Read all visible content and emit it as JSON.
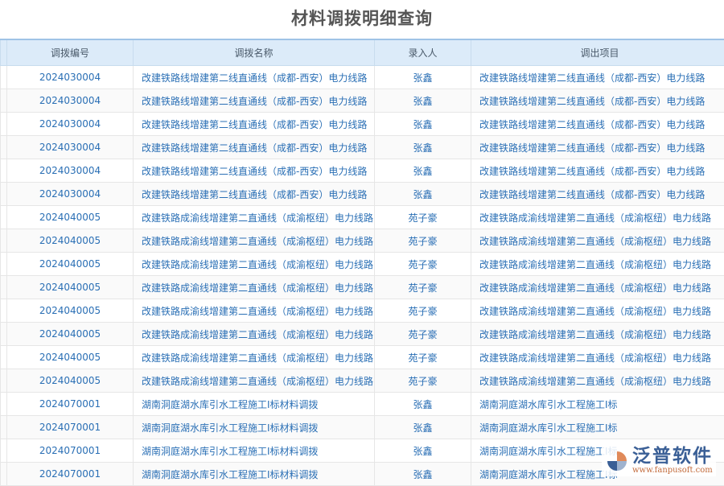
{
  "title": "材料调拨明细查询",
  "columns": [
    "调拨编号",
    "调拨名称",
    "录入人",
    "调出项目"
  ],
  "rows": [
    [
      "2024030004",
      "改建铁路线增建第二线直通线（成都-西安）电力线路",
      "张鑫",
      "改建铁路线增建第二线直通线（成都-西安）电力线路"
    ],
    [
      "2024030004",
      "改建铁路线增建第二线直通线（成都-西安）电力线路",
      "张鑫",
      "改建铁路线增建第二线直通线（成都-西安）电力线路"
    ],
    [
      "2024030004",
      "改建铁路线增建第二线直通线（成都-西安）电力线路",
      "张鑫",
      "改建铁路线增建第二线直通线（成都-西安）电力线路"
    ],
    [
      "2024030004",
      "改建铁路线增建第二线直通线（成都-西安）电力线路",
      "张鑫",
      "改建铁路线增建第二线直通线（成都-西安）电力线路"
    ],
    [
      "2024030004",
      "改建铁路线增建第二线直通线（成都-西安）电力线路",
      "张鑫",
      "改建铁路线增建第二线直通线（成都-西安）电力线路"
    ],
    [
      "2024030004",
      "改建铁路线增建第二线直通线（成都-西安）电力线路",
      "张鑫",
      "改建铁路线增建第二线直通线（成都-西安）电力线路"
    ],
    [
      "2024040005",
      "改建铁路成渝线增建第二直通线（成渝枢纽）电力线路",
      "苑子豪",
      "改建铁路成渝线增建第二直通线（成渝枢纽）电力线路"
    ],
    [
      "2024040005",
      "改建铁路成渝线增建第二直通线（成渝枢纽）电力线路",
      "苑子豪",
      "改建铁路成渝线增建第二直通线（成渝枢纽）电力线路"
    ],
    [
      "2024040005",
      "改建铁路成渝线增建第二直通线（成渝枢纽）电力线路",
      "苑子豪",
      "改建铁路成渝线增建第二直通线（成渝枢纽）电力线路"
    ],
    [
      "2024040005",
      "改建铁路成渝线增建第二直通线（成渝枢纽）电力线路",
      "苑子豪",
      "改建铁路成渝线增建第二直通线（成渝枢纽）电力线路"
    ],
    [
      "2024040005",
      "改建铁路成渝线增建第二直通线（成渝枢纽）电力线路",
      "苑子豪",
      "改建铁路成渝线增建第二直通线（成渝枢纽）电力线路"
    ],
    [
      "2024040005",
      "改建铁路成渝线增建第二直通线（成渝枢纽）电力线路",
      "苑子豪",
      "改建铁路成渝线增建第二直通线（成渝枢纽）电力线路"
    ],
    [
      "2024040005",
      "改建铁路成渝线增建第二直通线（成渝枢纽）电力线路",
      "苑子豪",
      "改建铁路成渝线增建第二直通线（成渝枢纽）电力线路"
    ],
    [
      "2024040005",
      "改建铁路成渝线增建第二直通线（成渝枢纽）电力线路",
      "苑子豪",
      "改建铁路成渝线增建第二直通线（成渝枢纽）电力线路"
    ],
    [
      "2024070001",
      "湖南洞庭湖水库引水工程施工I标材料调拨",
      "张鑫",
      "湖南洞庭湖水库引水工程施工I标"
    ],
    [
      "2024070001",
      "湖南洞庭湖水库引水工程施工I标材料调拨",
      "张鑫",
      "湖南洞庭湖水库引水工程施工I标"
    ],
    [
      "2024070001",
      "湖南洞庭湖水库引水工程施工I标材料调拨",
      "张鑫",
      "湖南洞庭湖水库引水工程施工I标"
    ],
    [
      "2024070001",
      "湖南洞庭湖水库引水工程施工I标材料调拨",
      "张鑫",
      "湖南洞庭湖水库引水工程施工I标"
    ]
  ],
  "logo": {
    "name": "泛普软件",
    "url": "www.fanpusoft.com"
  },
  "colors": {
    "header_bg": "#dcebf9",
    "link": "#2a6fb5"
  }
}
